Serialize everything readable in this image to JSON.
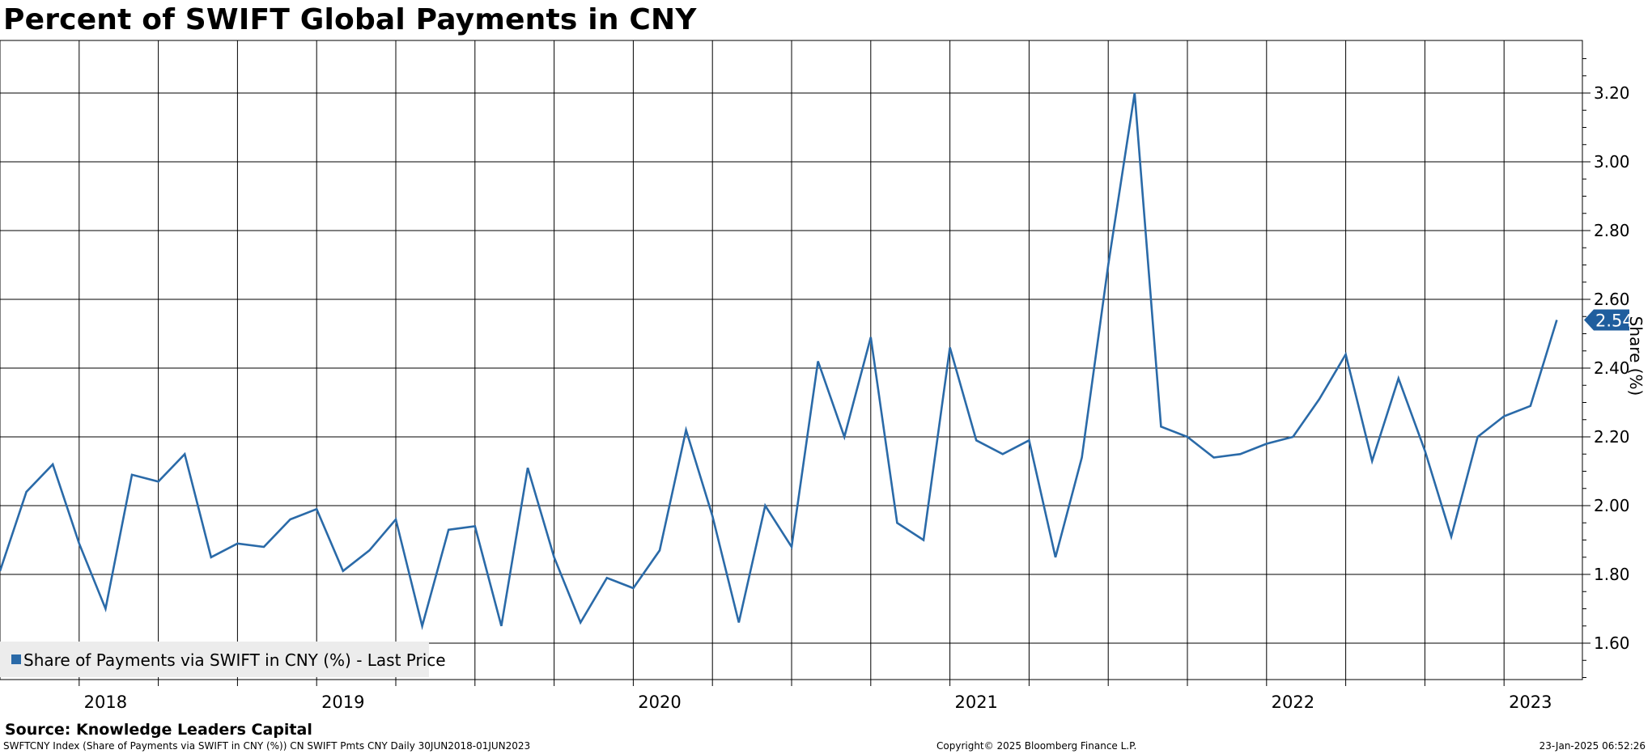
{
  "title": "Percent of SWIFT Global Payments in CNY",
  "source": "Source: Knowledge Leaders Capital",
  "footer": {
    "left": "SWFTCNY Index (Share of Payments via SWIFT in CNY (%)) CN SWIFT Pmts CNY  Daily 30JUN2018-01JUN2023",
    "center": "Copyright© 2025 Bloomberg Finance L.P.",
    "right": "23-Jan-2025 06:52:26"
  },
  "colors": {
    "line": "#2a6aa8",
    "grid": "#000000",
    "last_badge": "#1f5e9e"
  },
  "chart_data": {
    "type": "line",
    "ylabel": "Share (%)",
    "ylim": [
      1.5,
      3.35
    ],
    "yticks": [
      "1.60",
      "1.80",
      "2.00",
      "2.20",
      "2.40",
      "2.60",
      "2.80",
      "3.00",
      "3.20"
    ],
    "xlim": [
      "2018-06",
      "2023-08"
    ],
    "year_labels": [
      {
        "label": "2018",
        "x": "2018-10"
      },
      {
        "label": "2019",
        "x": "2019-07"
      },
      {
        "label": "2020",
        "x": "2020-07"
      },
      {
        "label": "2021",
        "x": "2021-07"
      },
      {
        "label": "2022",
        "x": "2022-07"
      },
      {
        "label": "2023",
        "x": "2023-04"
      }
    ],
    "legend": "Share of Payments via SWIFT in CNY (%) - Last Price",
    "last_value": "2.54",
    "series": [
      {
        "values": [
          {
            "x": "2018-06",
            "y": 1.81
          },
          {
            "x": "2018-07",
            "y": 2.04
          },
          {
            "x": "2018-08",
            "y": 2.12
          },
          {
            "x": "2018-09",
            "y": 1.89
          },
          {
            "x": "2018-10",
            "y": 1.7
          },
          {
            "x": "2018-11",
            "y": 2.09
          },
          {
            "x": "2018-12",
            "y": 2.07
          },
          {
            "x": "2019-01",
            "y": 2.15
          },
          {
            "x": "2019-02",
            "y": 1.85
          },
          {
            "x": "2019-03",
            "y": 1.89
          },
          {
            "x": "2019-04",
            "y": 1.88
          },
          {
            "x": "2019-05",
            "y": 1.96
          },
          {
            "x": "2019-06",
            "y": 1.99
          },
          {
            "x": "2019-07",
            "y": 1.81
          },
          {
            "x": "2019-08",
            "y": 1.87
          },
          {
            "x": "2019-09",
            "y": 1.96
          },
          {
            "x": "2019-10",
            "y": 1.65
          },
          {
            "x": "2019-11",
            "y": 1.93
          },
          {
            "x": "2019-12",
            "y": 1.94
          },
          {
            "x": "2020-01",
            "y": 1.65
          },
          {
            "x": "2020-02",
            "y": 2.11
          },
          {
            "x": "2020-03",
            "y": 1.85
          },
          {
            "x": "2020-04",
            "y": 1.66
          },
          {
            "x": "2020-05",
            "y": 1.79
          },
          {
            "x": "2020-06",
            "y": 1.76
          },
          {
            "x": "2020-07",
            "y": 1.87
          },
          {
            "x": "2020-08",
            "y": 2.22
          },
          {
            "x": "2020-09",
            "y": 1.97
          },
          {
            "x": "2020-10",
            "y": 1.66
          },
          {
            "x": "2020-11",
            "y": 2.0
          },
          {
            "x": "2020-12",
            "y": 1.88
          },
          {
            "x": "2021-01",
            "y": 2.42
          },
          {
            "x": "2021-02",
            "y": 2.2
          },
          {
            "x": "2021-03",
            "y": 2.49
          },
          {
            "x": "2021-04",
            "y": 1.95
          },
          {
            "x": "2021-05",
            "y": 1.9
          },
          {
            "x": "2021-06",
            "y": 2.46
          },
          {
            "x": "2021-07",
            "y": 2.19
          },
          {
            "x": "2021-08",
            "y": 2.15
          },
          {
            "x": "2021-09",
            "y": 2.19
          },
          {
            "x": "2021-10",
            "y": 1.85
          },
          {
            "x": "2021-11",
            "y": 2.14
          },
          {
            "x": "2021-12",
            "y": 2.7
          },
          {
            "x": "2022-01",
            "y": 3.2
          },
          {
            "x": "2022-02",
            "y": 2.23
          },
          {
            "x": "2022-03",
            "y": 2.2
          },
          {
            "x": "2022-04",
            "y": 2.14
          },
          {
            "x": "2022-05",
            "y": 2.15
          },
          {
            "x": "2022-06",
            "y": 2.18
          },
          {
            "x": "2022-07",
            "y": 2.2
          },
          {
            "x": "2022-08",
            "y": 2.31
          },
          {
            "x": "2022-09",
            "y": 2.44
          },
          {
            "x": "2022-10",
            "y": 2.13
          },
          {
            "x": "2022-11",
            "y": 2.37
          },
          {
            "x": "2022-12",
            "y": 2.16
          },
          {
            "x": "2023-01",
            "y": 1.91
          },
          {
            "x": "2023-02",
            "y": 2.2
          },
          {
            "x": "2023-03",
            "y": 2.26
          },
          {
            "x": "2023-04",
            "y": 2.29
          },
          {
            "x": "2023-05",
            "y": 2.54
          }
        ]
      }
    ]
  }
}
